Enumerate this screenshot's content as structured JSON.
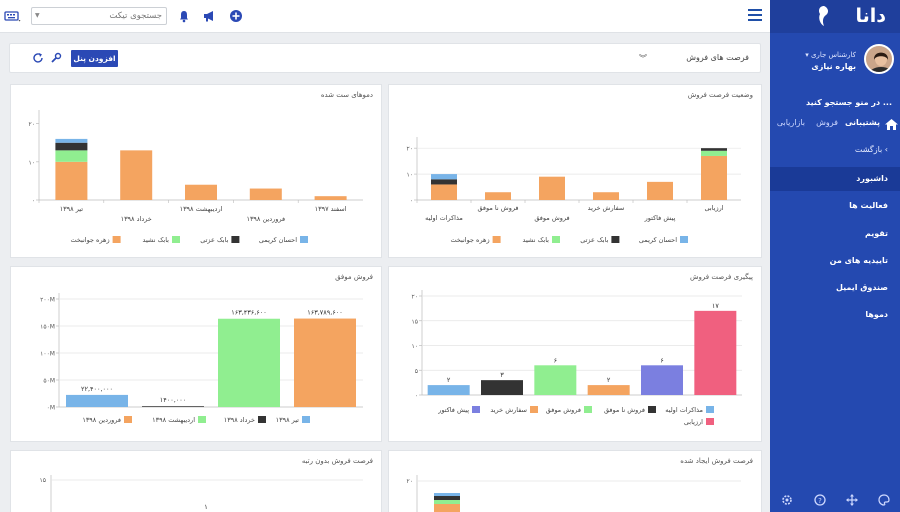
{
  "search": {
    "placeholder": "جستجوی تیکت"
  },
  "icons": {
    "keyboard": "keyboard-icon",
    "bell": "bell-icon",
    "megaphone": "megaphone-icon",
    "add": "add-circle-icon",
    "menu": "hamburger-menu-icon",
    "refresh": "refresh-icon",
    "wrench": "wrench-icon",
    "chevron": "double-chevron-down-icon"
  },
  "colors": {
    "sidebar": "#2449b0",
    "accent": "#2b49b5",
    "orange": "#f4a460",
    "green": "#90ee90",
    "dark": "#333333",
    "blue": "#78b4e8",
    "purple": "#7b7fe0",
    "pink": "#f0607f"
  },
  "toolbar": {
    "add_panel": "افزودن پنل",
    "selected_panel": "فرصت های فروش"
  },
  "cards": {
    "opportunity_status": {
      "title": "وضعیت فرصت فروش"
    },
    "won_deals": {
      "title": "دموهای ست شده"
    },
    "followup": {
      "title": "پیگیری فرصت فروش"
    },
    "successful_sales": {
      "title": "فروش موفق"
    },
    "created_opportunities": {
      "title": "فرصت فروش ایجاد شده"
    },
    "unranked_opportunities": {
      "title": "فرصت فروش بدون رتبه"
    }
  },
  "chart_data": [
    {
      "type": "bar",
      "title": "وضعیت فرصت فروش",
      "stacked": true,
      "categories": [
        "ارزیابی",
        "پیش فاکتور",
        "سفارش خرید",
        "فروش موفق",
        "فروش نا موفق",
        "مذاکرات اولیه"
      ],
      "series": [
        {
          "name": "زهره جوانبخت",
          "values": [
            17,
            7,
            3,
            9,
            3,
            6
          ]
        },
        {
          "name": "بابک نشید",
          "values": [
            2,
            0,
            0,
            0,
            0,
            0
          ]
        },
        {
          "name": "بابک عزتی",
          "values": [
            1,
            0,
            0,
            0,
            0,
            2
          ]
        },
        {
          "name": "احسان کریمی",
          "values": [
            0,
            0,
            0,
            0,
            0,
            2
          ]
        }
      ],
      "yticks": [
        0,
        10,
        20
      ],
      "ylim": [
        0,
        22
      ],
      "grid": true,
      "legend": "bottom"
    },
    {
      "type": "bar",
      "title": "دموهای ست شده",
      "stacked": true,
      "categories": [
        "تیر ۱۳۹۸",
        "خرداد ۱۳۹۸",
        "اردیبهشت ۱۳۹۸",
        "فروردین ۱۳۹۸",
        "اسفند ۱۳۹۷"
      ],
      "series": [
        {
          "name": "زهره جوانبخت",
          "values": [
            10,
            13,
            4,
            3,
            1
          ]
        },
        {
          "name": "بابک نشید",
          "values": [
            3,
            0,
            0,
            0,
            0
          ]
        },
        {
          "name": "بابک عزتی",
          "values": [
            2,
            0,
            0,
            0,
            0
          ]
        },
        {
          "name": "احسان کریمی",
          "values": [
            1,
            0,
            0,
            0,
            0
          ]
        }
      ],
      "yticks": [
        0,
        10,
        20
      ],
      "ylim": [
        0,
        22
      ],
      "grid": false,
      "legend": "bottom"
    },
    {
      "type": "bar",
      "title": "پیگیری فرصت فروش",
      "categories": [
        "مذاکرات اولیه",
        "فروش نا موفق",
        "فروش موفق",
        "سفارش خرید",
        "پیش فاکتور",
        "ارزیابی"
      ],
      "values": [
        2,
        3,
        6,
        2,
        6,
        17
      ],
      "value_labels": [
        "۲",
        "۳",
        "۶",
        "۲",
        "۶",
        "۱۷"
      ],
      "colors": [
        "#78b4e8",
        "#333333",
        "#90ee90",
        "#f4a460",
        "#7b7fe0",
        "#f0607f"
      ],
      "yticks": [
        0,
        5,
        10,
        15,
        20
      ],
      "ylim": [
        0,
        20
      ],
      "grid": true,
      "legend": "bottom"
    },
    {
      "type": "bar",
      "title": "فروش موفق",
      "categories": [
        "تیر ۱۳۹۸",
        "خرداد ۱۳۹۸",
        "اردیبهشت ۱۳۹۸",
        "فروردین ۱۳۹۸"
      ],
      "values": [
        22400000,
        1400000,
        163436600,
        163789600
      ],
      "value_labels": [
        "۲۲,۴۰۰,۰۰۰",
        "۱۴۰۰,۰۰۰",
        "۱۶۳,۴۳۶,۶۰۰",
        "۱۶۳,۷۸۹,۶۰۰"
      ],
      "colors": [
        "#78b4e8",
        "#333333",
        "#90ee90",
        "#f4a460"
      ],
      "ytick_labels": [
        "۰M",
        "۵۰M",
        "۱۰۰M",
        "۱۵۰M",
        "۲۰۰M"
      ],
      "yticks": [
        0,
        50000000,
        100000000,
        150000000,
        200000000
      ],
      "ylim": [
        0,
        200000000
      ],
      "grid": true,
      "legend": "bottom"
    },
    {
      "type": "bar",
      "title": "فرصت فروش ایجاد شده",
      "yticks": [
        20
      ],
      "partial": true
    },
    {
      "type": "bar",
      "title": "فرصت فروش بدون رتبه",
      "yticks": [
        15
      ],
      "value_labels": [
        "۱"
      ],
      "partial": true
    }
  ],
  "sidebar": {
    "logo": "دانا",
    "role": "کارشناس جاری",
    "user_name": "بهاره نیازی",
    "search_menu": "در منو جستجو کنید ...",
    "tabs": {
      "support": "پشتیبانی",
      "sales": "فروش",
      "marketing": "بازاریابی"
    },
    "back": "بازگشت",
    "items": [
      "داشبورد",
      "فعالیت ها",
      "تقویم",
      "تاییدیه های من",
      "صندوق ایمیل",
      "دموها"
    ],
    "footer_icons": [
      "palette-icon",
      "move-icon",
      "help-icon",
      "settings-icon"
    ]
  }
}
